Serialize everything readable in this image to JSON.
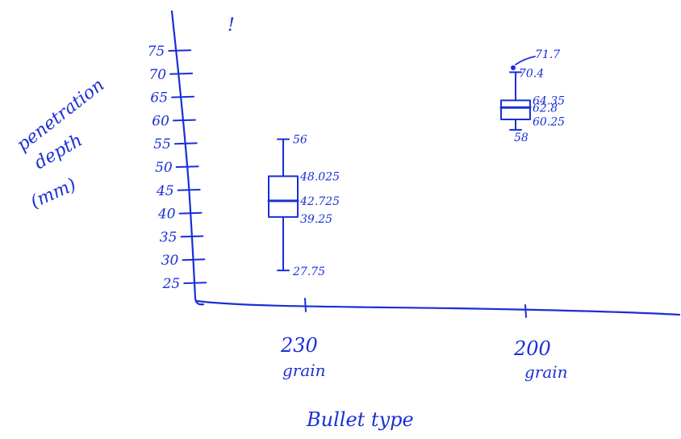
{
  "chart_data": {
    "type": "box",
    "title": "",
    "xlabel": "Bullet type",
    "ylabel": [
      "penetration",
      "depth",
      "(mm)"
    ],
    "y_ticks": [
      25,
      30,
      35,
      40,
      45,
      50,
      55,
      60,
      65,
      70,
      75
    ],
    "ylim": [
      22,
      80
    ],
    "categories": [
      {
        "line1": "230",
        "line2": "grain"
      },
      {
        "line1": "200",
        "line2": "grain"
      }
    ],
    "boxes": [
      {
        "category": "230 grain",
        "whisker_low": 27.75,
        "q1": 39.25,
        "median": 42.725,
        "q3": 48.025,
        "whisker_high": 56,
        "labels": {
          "whisker_high": "56",
          "q3": "48.025",
          "median": "42.725",
          "q1": "39.25",
          "whisker_low": "27.75"
        }
      },
      {
        "category": "200 grain",
        "whisker_low": 58,
        "q1": 60.25,
        "median": 62.8,
        "q3": 64.35,
        "whisker_high": 70.4,
        "outlier": 71.7,
        "labels": {
          "outlier": "71.7",
          "whisker_high": "70.4",
          "q3": "64.35",
          "median": "62.8",
          "q1": "60.25",
          "whisker_low": "58"
        }
      }
    ],
    "annotations": [
      "!"
    ],
    "grid": false,
    "legend": "none"
  }
}
